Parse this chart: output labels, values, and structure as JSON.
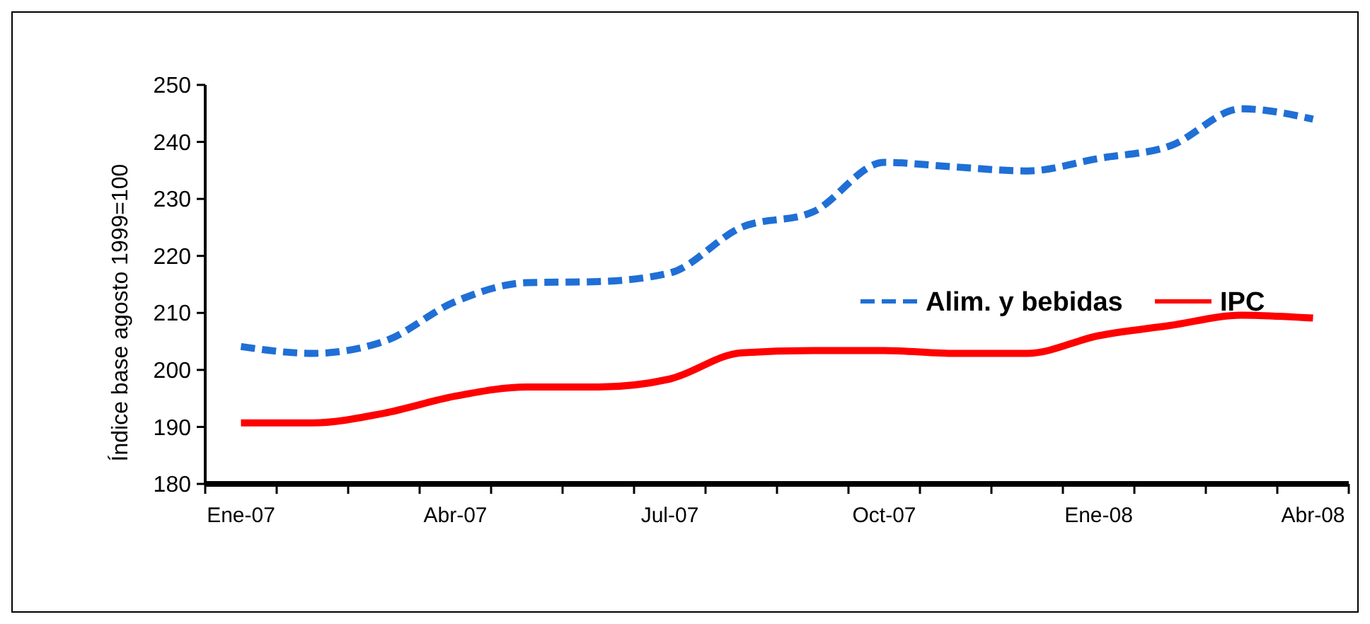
{
  "chart_data": {
    "type": "line",
    "ylabel": "Índice base agosto 1999=100",
    "categories": [
      "Ene-07",
      null,
      null,
      "Abr-07",
      null,
      null,
      "Jul-07",
      null,
      null,
      "Oct-07",
      null,
      null,
      "Ene-08",
      null,
      null,
      "Abr-08"
    ],
    "ylim": [
      180,
      250
    ],
    "yticks": [
      180,
      190,
      200,
      210,
      220,
      230,
      240,
      250
    ],
    "grid": false,
    "legend": "right",
    "marker": "none",
    "series": [
      {
        "name": "Alim. y bebidas",
        "color": "#1f6fd6",
        "line_style": "dashed",
        "values": [
          204.1,
          202.9,
          205,
          212,
          215.3,
          215.5,
          217,
          225,
          227.7,
          236.4,
          235.6,
          234.9,
          237.1,
          239.3,
          245.8,
          244
        ]
      },
      {
        "name": "IPC",
        "color": "#ff0000",
        "line_style": "solid",
        "values": [
          190.7,
          190.7,
          192.4,
          195.4,
          197,
          197,
          198.4,
          203,
          203.4,
          203.4,
          202.9,
          202.9,
          206,
          207.8,
          209.6,
          209.1
        ]
      }
    ]
  }
}
